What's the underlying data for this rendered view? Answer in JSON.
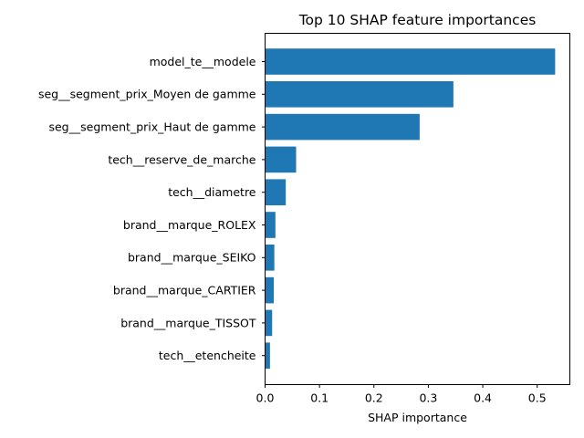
{
  "chart_data": {
    "type": "bar",
    "orientation": "horizontal",
    "title": "Top 10 SHAP feature importances",
    "xlabel": "SHAP importance",
    "ylabel": "",
    "xlim": [
      0,
      0.56
    ],
    "xticks": [
      0.0,
      0.1,
      0.2,
      0.3,
      0.4,
      0.5
    ],
    "xtick_labels": [
      "0.0",
      "0.1",
      "0.2",
      "0.3",
      "0.4",
      "0.5"
    ],
    "categories": [
      "model_te__modele",
      "seg__segment_prix_Moyen de gamme",
      "seg__segment_prix_Haut de gamme",
      "tech__reserve_de_marche",
      "tech__diametre",
      "brand__marque_ROLEX",
      "brand__marque_SEIKO",
      "brand__marque_CARTIER",
      "brand__marque_TISSOT",
      "tech__etencheite"
    ],
    "values": [
      0.533,
      0.346,
      0.284,
      0.057,
      0.038,
      0.019,
      0.017,
      0.016,
      0.013,
      0.009
    ],
    "bar_color": "#1f77b4",
    "grid": false,
    "legend": "none"
  }
}
